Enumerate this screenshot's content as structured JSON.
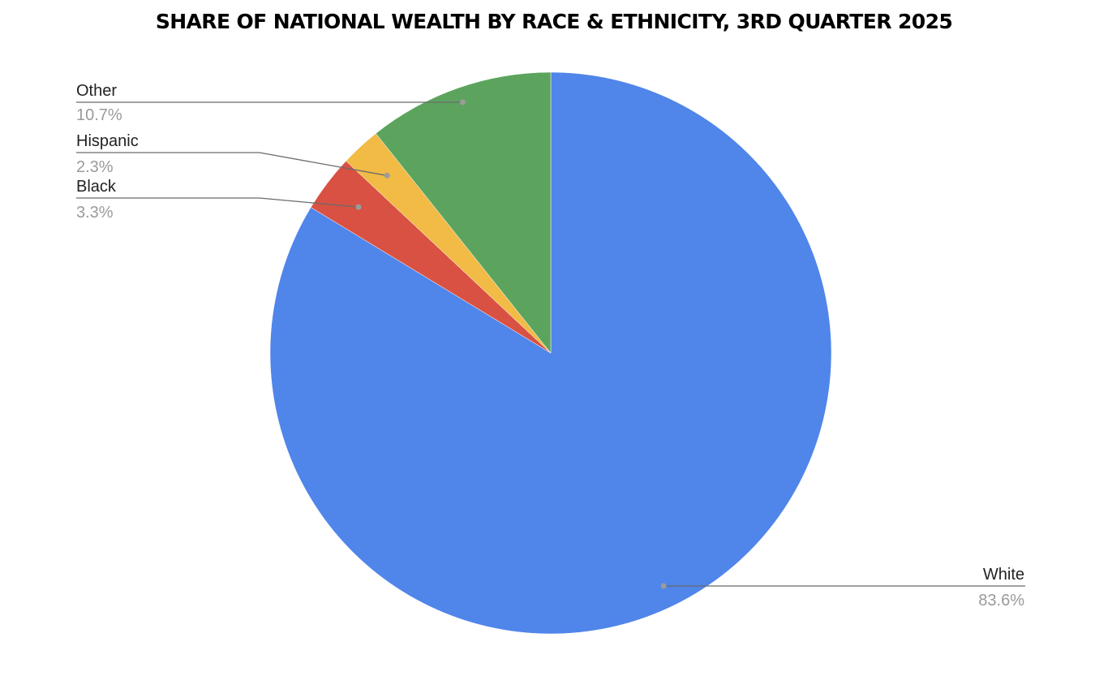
{
  "chart_data": {
    "type": "pie",
    "title": "SHARE OF NATIONAL WEALTH BY RACE & ETHNICITY, 3RD QUARTER 2025",
    "start_angle_deg": 0,
    "direction": "clockwise",
    "slices": [
      {
        "label": "White",
        "value": 83.6,
        "value_label": "83.6%",
        "color": "#5085EA"
      },
      {
        "label": "Black",
        "value": 3.3,
        "value_label": "3.3%",
        "color": "#D95142"
      },
      {
        "label": "Hispanic",
        "value": 2.3,
        "value_label": "2.3%",
        "color": "#F1BB46"
      },
      {
        "label": "Other",
        "value": 10.7,
        "value_label": "10.7%",
        "color": "#5CA45E"
      }
    ],
    "label_placement": "outside with leader lines",
    "legend": "none"
  }
}
